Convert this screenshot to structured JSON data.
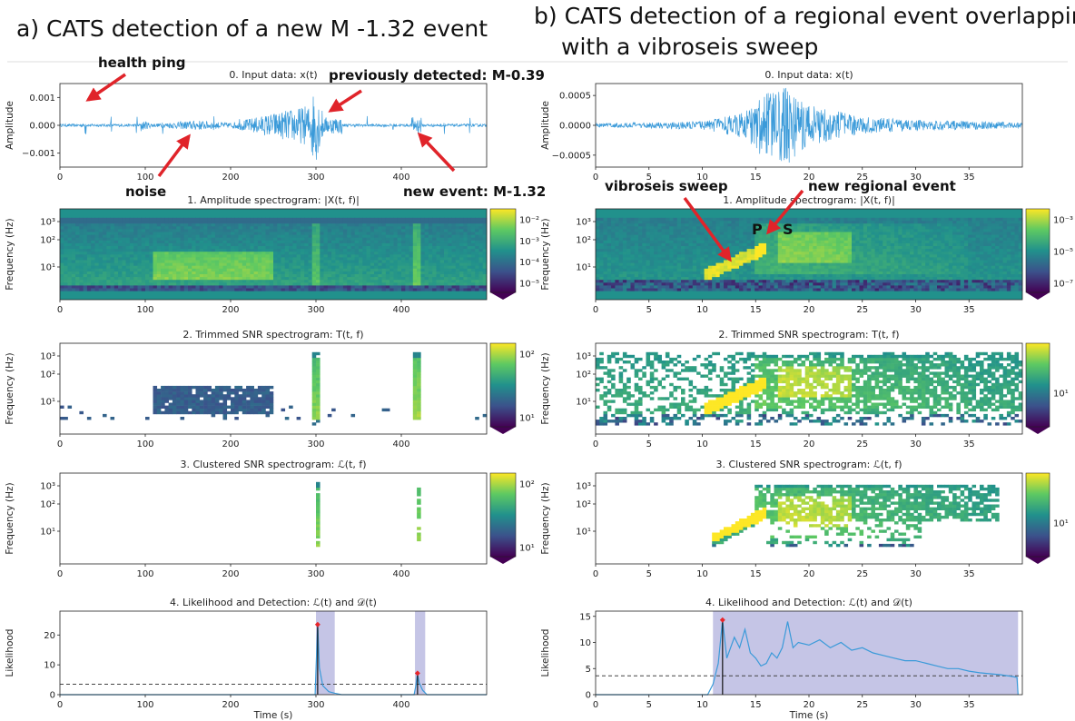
{
  "panel_titles": {
    "a": "a) CATS detection of a new M -1.32 event",
    "b_line1": "b) CATS detection of a regional event overlapping",
    "b_line2": "with a vibroseis sweep"
  },
  "annotations": {
    "health_ping": "health ping",
    "previously_detected": "previously detected: M-0.39",
    "noise": "noise",
    "new_event": "new event: M-1.32",
    "vibroseis_sweep": "vibroseis sweep",
    "new_regional_event": "new regional event",
    "p_label": "P",
    "s_label": "S"
  },
  "colors": {
    "trace": "#3a9ad9",
    "detection_fill": "#c5c5e6",
    "peak": "#e8262b",
    "arrow": "#e0242a"
  },
  "chart_data": [
    {
      "id": "a0",
      "type": "line",
      "title": "0. Input data: x(t)",
      "xlabel": "",
      "ylabel": "Amplitude",
      "xlim": [
        0,
        500
      ],
      "ylim": [
        -0.0015,
        0.0015
      ],
      "xticks": [
        0,
        100,
        200,
        300,
        400
      ],
      "xtick_labels": [
        "0",
        "100",
        "200",
        "300",
        "400"
      ],
      "yticks": [
        0.001,
        0.0,
        -0.001
      ],
      "ytick_labels": [
        "0.001",
        "0.000",
        "−0.001"
      ],
      "series": [
        {
          "envelope": [
            {
              "t": 30,
              "a": 0.0004
            },
            {
              "t": 60,
              "a": 0.0004
            },
            {
              "t": 90,
              "a": 0.0004
            },
            {
              "t": 110,
              "a": 0.0001
            },
            {
              "t": 160,
              "a": 0.0003
            },
            {
              "t": 200,
              "a": 0.00015
            },
            {
              "t": 300,
              "a": 0.0013
            },
            {
              "t": 310,
              "a": 0.0003
            },
            {
              "t": 418,
              "a": 0.0003
            }
          ]
        }
      ]
    },
    {
      "id": "a1",
      "type": "heatmap",
      "title": "1. Amplitude spectrogram: |X(t, f)|",
      "ylabel": "Frequency (Hz)",
      "xlim": [
        0,
        500
      ],
      "xticks": [
        0,
        100,
        200,
        300,
        400
      ],
      "xtick_labels": [
        "0",
        "100",
        "200",
        "300",
        "400"
      ],
      "ytick_labels": [
        "10³",
        "10²",
        "10¹"
      ],
      "colorbar_labels": [
        "10⁻²",
        "10⁻³",
        "10⁻⁴",
        "10⁻⁵"
      ]
    },
    {
      "id": "a2",
      "type": "heatmap",
      "title": "2. Trimmed SNR spectrogram: T(t, f)",
      "ylabel": "Frequency (Hz)",
      "xlim": [
        0,
        500
      ],
      "xticks": [
        0,
        100,
        200,
        300,
        400
      ],
      "xtick_labels": [
        "0",
        "100",
        "200",
        "300",
        "400"
      ],
      "ytick_labels": [
        "10³",
        "10²",
        "10¹"
      ],
      "colorbar_labels": [
        "10²",
        "10¹"
      ]
    },
    {
      "id": "a3",
      "type": "heatmap",
      "title": "3. Clustered SNR spectrogram: ℒ(t, f)",
      "ylabel": "Frequency (Hz)",
      "xlim": [
        0,
        500
      ],
      "xticks": [
        0,
        100,
        200,
        300,
        400
      ],
      "xtick_labels": [
        "0",
        "100",
        "200",
        "300",
        "400"
      ],
      "ytick_labels": [
        "10³",
        "10²",
        "10¹"
      ],
      "colorbar_labels": [
        "10²",
        "10¹"
      ]
    },
    {
      "id": "a4",
      "type": "line",
      "title": "4. Likelihood and Detection: ℒ(t) and 𝒟(t)",
      "xlabel": "Time (s)",
      "ylabel": "Likelihood",
      "xlim": [
        0,
        500
      ],
      "ylim": [
        0,
        28
      ],
      "xticks": [
        0,
        100,
        200,
        300,
        400
      ],
      "xtick_labels": [
        "0",
        "100",
        "200",
        "300",
        "400"
      ],
      "yticks": [
        0,
        10,
        20
      ],
      "ytick_labels": [
        "0",
        "10",
        "20"
      ],
      "threshold": 3.5,
      "detections": [
        [
          300,
          322
        ],
        [
          416,
          428
        ]
      ],
      "peaks": [
        {
          "x": 302,
          "y": 23.5
        },
        {
          "x": 419,
          "y": 7.2
        }
      ],
      "series": [
        {
          "x": [
            0,
            299,
            300,
            302,
            304,
            308,
            315,
            322,
            330,
            415,
            417,
            419,
            421,
            425,
            430,
            500
          ],
          "y": [
            0,
            0,
            8,
            23.5,
            9,
            3,
            1,
            0.5,
            0,
            0,
            3,
            7.2,
            4,
            1.5,
            0,
            0
          ]
        }
      ]
    },
    {
      "id": "b0",
      "type": "line",
      "title": "0. Input data: x(t)",
      "xlabel": "",
      "ylabel": "Amplitude",
      "xlim": [
        0,
        40
      ],
      "ylim": [
        -0.0007,
        0.0007
      ],
      "xticks": [
        0,
        5,
        10,
        15,
        20,
        25,
        30,
        35
      ],
      "xtick_labels": [
        "0",
        "5",
        "10",
        "15",
        "20",
        "25",
        "30",
        "35"
      ],
      "yticks": [
        0.0005,
        0.0,
        -0.0005
      ],
      "ytick_labels": [
        "0.0005",
        "0.0000",
        "−0.0005"
      ],
      "series": [
        {
          "envelope": [
            {
              "t": 0,
              "a": 3e-05
            },
            {
              "t": 10,
              "a": 7e-05
            },
            {
              "t": 14,
              "a": 0.00022
            },
            {
              "t": 15.5,
              "a": 0.0005
            },
            {
              "t": 18,
              "a": 0.00065
            },
            {
              "t": 20,
              "a": 0.00035
            },
            {
              "t": 25,
              "a": 0.00014
            },
            {
              "t": 30,
              "a": 9e-05
            },
            {
              "t": 40,
              "a": 5e-05
            }
          ]
        }
      ]
    },
    {
      "id": "b1",
      "type": "heatmap",
      "title": "1. Amplitude spectrogram: |X(t, f)|",
      "ylabel": "Frequency (Hz)",
      "xlim": [
        0,
        40
      ],
      "xticks": [
        0,
        5,
        10,
        15,
        20,
        25,
        30,
        35
      ],
      "xtick_labels": [
        "0",
        "5",
        "10",
        "15",
        "20",
        "25",
        "30",
        "35"
      ],
      "ytick_labels": [
        "10³",
        "10²",
        "10¹"
      ],
      "colorbar_labels": [
        "10⁻³",
        "10⁻⁵",
        "10⁻⁷"
      ]
    },
    {
      "id": "b2",
      "type": "heatmap",
      "title": "2. Trimmed SNR spectrogram: T(t, f)",
      "ylabel": "Frequency (Hz)",
      "xlim": [
        0,
        40
      ],
      "xticks": [
        0,
        5,
        10,
        15,
        20,
        25,
        30,
        35
      ],
      "xtick_labels": [
        "0",
        "5",
        "10",
        "15",
        "20",
        "25",
        "30",
        "35"
      ],
      "ytick_labels": [
        "10³",
        "10²",
        "10¹"
      ],
      "colorbar_labels": [
        "10¹"
      ]
    },
    {
      "id": "b3",
      "type": "heatmap",
      "title": "3. Clustered SNR spectrogram: ℒ(t, f)",
      "ylabel": "Frequency (Hz)",
      "xlim": [
        0,
        40
      ],
      "xticks": [
        0,
        5,
        10,
        15,
        20,
        25,
        30,
        35
      ],
      "xtick_labels": [
        "0",
        "5",
        "10",
        "15",
        "20",
        "25",
        "30",
        "35"
      ],
      "ytick_labels": [
        "10³",
        "10²",
        "10¹"
      ],
      "colorbar_labels": [
        "10¹"
      ]
    },
    {
      "id": "b4",
      "type": "line",
      "title": "4. Likelihood and Detection: ℒ(t) and 𝒟(t)",
      "xlabel": "Time (s)",
      "ylabel": "Likelihood",
      "xlim": [
        0,
        40
      ],
      "ylim": [
        0,
        16
      ],
      "xticks": [
        0,
        5,
        10,
        15,
        20,
        25,
        30,
        35
      ],
      "xtick_labels": [
        "0",
        "5",
        "10",
        "15",
        "20",
        "25",
        "30",
        "35"
      ],
      "yticks": [
        0,
        5,
        10,
        15
      ],
      "ytick_labels": [
        "0",
        "5",
        "10",
        "15"
      ],
      "threshold": 3.6,
      "detections": [
        [
          11,
          39.6
        ]
      ],
      "peaks": [
        {
          "x": 11.9,
          "y": 14.3
        }
      ],
      "series": [
        {
          "x": [
            0,
            10.5,
            11,
            11.5,
            11.9,
            12.3,
            13,
            13.5,
            14,
            14.5,
            15,
            15.5,
            16,
            16.5,
            17,
            17.5,
            18,
            18.5,
            19,
            20,
            21,
            22,
            23,
            24,
            25,
            26,
            27,
            28,
            29,
            30,
            31,
            32,
            33,
            34,
            35,
            36,
            37,
            38,
            39,
            39.5,
            39.6
          ],
          "y": [
            0,
            0,
            2,
            6,
            14.3,
            7,
            11,
            9,
            12.5,
            8,
            7,
            5.5,
            6,
            8,
            7,
            9,
            14,
            9,
            10,
            9.5,
            10.5,
            9,
            10,
            8.5,
            9,
            8,
            7.5,
            7,
            6.5,
            6.5,
            6,
            5.5,
            5,
            5,
            4.5,
            4.2,
            4,
            3.8,
            3.5,
            3.3,
            0
          ]
        }
      ]
    }
  ]
}
